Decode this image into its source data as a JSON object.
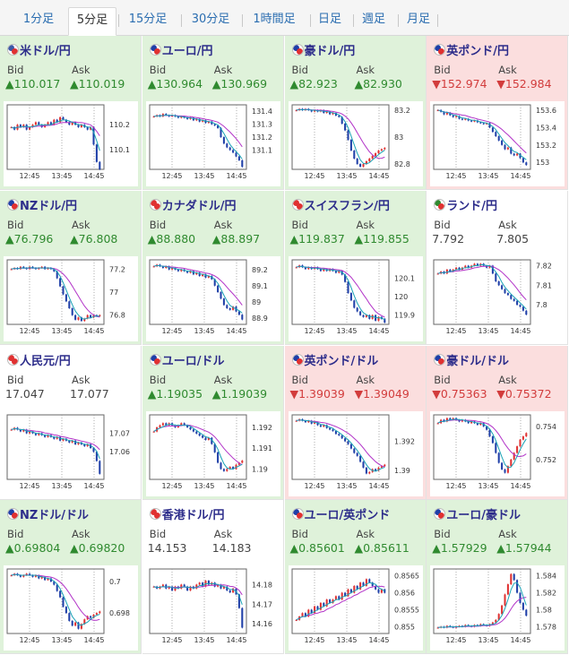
{
  "tabs": [
    "1分足",
    "5分足",
    "15分足",
    "30分足",
    "1時間足",
    "日足",
    "週足",
    "月足"
  ],
  "active_tab": "5分足",
  "labels": {
    "bid": "Bid",
    "ask": "Ask"
  },
  "colors": {
    "up_bg": "#dff2da",
    "down_bg": "#fbdede",
    "flat_bg": "#ffffff",
    "up_text": "#2f8a2f",
    "down_text": "#d23c3c",
    "candle_up": "#e03131",
    "candle_down": "#1f3fa8",
    "ma_long": "#b233c8",
    "ma_short": "#1aa3b6"
  },
  "pairs": [
    {
      "name": "米ドル/円",
      "trend": "up",
      "bid": "▲110.017",
      "ask": "▲110.019",
      "flag": [
        "#3c5aa6",
        "#e03131"
      ],
      "chart_data": {
        "type": "candlestick",
        "x_ticks": [
          "12:45",
          "13:45",
          "14:45"
        ],
        "y_ticks": [
          "110.2",
          "110.1"
        ],
        "ylim": [
          110.02,
          110.28
        ],
        "closes": [
          110.19,
          110.18,
          110.2,
          110.19,
          110.2,
          110.18,
          110.19,
          110.2,
          110.21,
          110.2,
          110.19,
          110.2,
          110.21,
          110.2,
          110.22,
          110.21,
          110.23,
          110.22,
          110.21,
          110.2,
          110.21,
          110.2,
          110.19,
          110.2,
          110.19,
          110.18,
          110.19,
          110.12,
          110.05,
          110.02
        ]
      }
    },
    {
      "name": "ユーロ/円",
      "trend": "up",
      "bid": "▲130.964",
      "ask": "▲130.969",
      "flag": [
        "#1f3fa8",
        "#e03131"
      ],
      "chart_data": {
        "type": "candlestick",
        "x_ticks": [
          "12:45",
          "13:45",
          "14:45"
        ],
        "y_ticks": [
          "131.4",
          "131.3",
          "131.2",
          "131.1"
        ],
        "ylim": [
          130.95,
          131.45
        ],
        "closes": [
          131.36,
          131.37,
          131.36,
          131.38,
          131.37,
          131.36,
          131.37,
          131.36,
          131.35,
          131.36,
          131.35,
          131.34,
          131.35,
          131.33,
          131.34,
          131.32,
          131.33,
          131.31,
          131.32,
          131.3,
          131.29,
          131.27,
          131.2,
          131.15,
          131.12,
          131.1,
          131.08,
          131.05,
          131.02,
          130.97
        ]
      }
    },
    {
      "name": "豪ドル/円",
      "trend": "up",
      "bid": "▲82.923",
      "ask": "▲82.930",
      "flag": [
        "#1f3fa8",
        "#e03131"
      ],
      "chart_data": {
        "type": "candlestick",
        "x_ticks": [
          "12:45",
          "13:45",
          "14:45"
        ],
        "y_ticks": [
          "83.2",
          "83",
          "82.8"
        ],
        "ylim": [
          82.76,
          83.24
        ],
        "closes": [
          83.2,
          83.21,
          83.2,
          83.21,
          83.2,
          83.19,
          83.2,
          83.19,
          83.2,
          83.18,
          83.19,
          83.17,
          83.18,
          83.16,
          83.15,
          83.1,
          83.05,
          82.98,
          82.9,
          82.84,
          82.8,
          82.78,
          82.8,
          82.82,
          82.84,
          82.86,
          82.88,
          82.9,
          82.91,
          82.92
        ]
      }
    },
    {
      "name": "英ポンド/円",
      "trend": "down",
      "bid": "▼152.974",
      "ask": "▼152.984",
      "flag": [
        "#1f3fa8",
        "#e03131"
      ],
      "chart_data": {
        "type": "candlestick",
        "x_ticks": [
          "12:45",
          "13:45",
          "14:45"
        ],
        "y_ticks": [
          "153.6",
          "153.4",
          "153.2",
          "153"
        ],
        "ylim": [
          152.92,
          153.66
        ],
        "closes": [
          153.6,
          153.58,
          153.55,
          153.57,
          153.54,
          153.52,
          153.53,
          153.5,
          153.49,
          153.5,
          153.48,
          153.47,
          153.48,
          153.46,
          153.45,
          153.44,
          153.45,
          153.4,
          153.35,
          153.3,
          153.25,
          153.2,
          153.15,
          153.17,
          153.1,
          153.08,
          153.1,
          153.05,
          153.0,
          152.97
        ]
      }
    },
    {
      "name": "NZドル/円",
      "trend": "up",
      "bid": "▲76.796",
      "ask": "▲76.808",
      "flag": [
        "#1f3fa8",
        "#e03131"
      ],
      "chart_data": {
        "type": "candlestick",
        "x_ticks": [
          "12:45",
          "13:45",
          "14:45"
        ],
        "y_ticks": [
          "77.2",
          "77",
          "76.8"
        ],
        "ylim": [
          76.72,
          77.28
        ],
        "closes": [
          77.2,
          77.21,
          77.2,
          77.22,
          77.21,
          77.2,
          77.22,
          77.21,
          77.2,
          77.21,
          77.22,
          77.2,
          77.21,
          77.2,
          77.18,
          77.12,
          77.05,
          76.98,
          76.92,
          76.86,
          76.8,
          76.76,
          76.78,
          76.75,
          76.77,
          76.8,
          76.78,
          76.8,
          76.79,
          76.8
        ]
      }
    },
    {
      "name": "カナダドル/円",
      "trend": "up",
      "bid": "▲88.880",
      "ask": "▲88.897",
      "flag": [
        "#e03131",
        "#e03131"
      ],
      "chart_data": {
        "type": "candlestick",
        "x_ticks": [
          "12:45",
          "13:45",
          "14:45"
        ],
        "y_ticks": [
          "89.2",
          "89.1",
          "89",
          "88.9"
        ],
        "ylim": [
          88.86,
          89.26
        ],
        "closes": [
          89.22,
          89.23,
          89.22,
          89.21,
          89.22,
          89.2,
          89.21,
          89.2,
          89.19,
          89.2,
          89.19,
          89.18,
          89.19,
          89.17,
          89.18,
          89.16,
          89.17,
          89.15,
          89.16,
          89.14,
          89.1,
          89.06,
          89.02,
          88.98,
          88.96,
          88.95,
          88.97,
          88.94,
          88.92,
          88.89
        ]
      }
    },
    {
      "name": "スイスフラン/円",
      "trend": "up",
      "bid": "▲119.837",
      "ask": "▲119.855",
      "flag": [
        "#e03131",
        "#e03131"
      ],
      "chart_data": {
        "type": "candlestick",
        "x_ticks": [
          "12:45",
          "13:45",
          "14:45"
        ],
        "y_ticks": [
          "120.1",
          "120",
          "119.9"
        ],
        "ylim": [
          119.85,
          120.2
        ],
        "closes": [
          120.16,
          120.17,
          120.16,
          120.15,
          120.16,
          120.15,
          120.16,
          120.15,
          120.14,
          120.15,
          120.14,
          120.15,
          120.14,
          120.13,
          120.14,
          120.12,
          120.08,
          120.02,
          119.98,
          119.94,
          119.92,
          119.9,
          119.89,
          119.9,
          119.88,
          119.9,
          119.87,
          119.89,
          119.88,
          119.86
        ]
      }
    },
    {
      "name": "ランド/円",
      "trend": "flat",
      "bid": "7.792",
      "ask": "7.805",
      "flag": [
        "#2f8a2f",
        "#e03131"
      ],
      "chart_data": {
        "type": "candlestick",
        "x_ticks": [
          "12:45",
          "13:45",
          "14:45"
        ],
        "y_ticks": [
          "7.82",
          "7.81",
          "7.8"
        ],
        "ylim": [
          7.79,
          7.823
        ],
        "closes": [
          7.816,
          7.817,
          7.816,
          7.818,
          7.817,
          7.818,
          7.819,
          7.818,
          7.819,
          7.82,
          7.819,
          7.82,
          7.821,
          7.82,
          7.821,
          7.82,
          7.819,
          7.82,
          7.816,
          7.812,
          7.81,
          7.808,
          7.806,
          7.805,
          7.803,
          7.802,
          7.8,
          7.799,
          7.797,
          7.795
        ]
      }
    },
    {
      "name": "人民元/円",
      "trend": "flat",
      "bid": "17.047",
      "ask": "17.077",
      "flag": [
        "#e03131",
        "#e03131"
      ],
      "chart_data": {
        "type": "candlestick",
        "x_ticks": [
          "12:45",
          "13:45",
          "14:45"
        ],
        "y_ticks": [
          "17.07",
          "17.06"
        ],
        "ylim": [
          17.045,
          17.08
        ],
        "closes": [
          17.072,
          17.073,
          17.072,
          17.071,
          17.072,
          17.07,
          17.071,
          17.07,
          17.069,
          17.07,
          17.069,
          17.068,
          17.069,
          17.068,
          17.067,
          17.068,
          17.066,
          17.067,
          17.066,
          17.065,
          17.066,
          17.064,
          17.065,
          17.064,
          17.063,
          17.064,
          17.062,
          17.06,
          17.055,
          17.048
        ]
      }
    },
    {
      "name": "ユーロ/ドル",
      "trend": "up",
      "bid": "▲1.19035",
      "ask": "▲1.19039",
      "flag": [
        "#1f3fa8",
        "#e03131"
      ],
      "chart_data": {
        "type": "candlestick",
        "x_ticks": [
          "12:45",
          "13:45",
          "14:45"
        ],
        "y_ticks": [
          "1.192",
          "1.191",
          "1.19"
        ],
        "ylim": [
          1.1895,
          1.1926
        ],
        "closes": [
          1.1918,
          1.192,
          1.1921,
          1.1922,
          1.1921,
          1.1922,
          1.1921,
          1.192,
          1.1921,
          1.1922,
          1.1921,
          1.192,
          1.1919,
          1.1918,
          1.1917,
          1.1916,
          1.1915,
          1.1914,
          1.1915,
          1.1912,
          1.1908,
          1.1903,
          1.19,
          1.1899,
          1.19,
          1.1901,
          1.19,
          1.1902,
          1.1903,
          1.1904
        ]
      }
    },
    {
      "name": "英ポンド/ドル",
      "trend": "down",
      "bid": "▼1.39039",
      "ask": "▼1.39049",
      "flag": [
        "#1f3fa8",
        "#e03131"
      ],
      "chart_data": {
        "type": "candlestick",
        "x_ticks": [
          "12:45",
          "13:45",
          "14:45"
        ],
        "y_ticks": [
          "1.392",
          "1.39"
        ],
        "ylim": [
          1.3894,
          1.3938
        ],
        "closes": [
          1.3934,
          1.3935,
          1.3934,
          1.3933,
          1.3934,
          1.3932,
          1.3933,
          1.3931,
          1.393,
          1.3931,
          1.3929,
          1.3928,
          1.3927,
          1.3925,
          1.3924,
          1.3922,
          1.392,
          1.3918,
          1.3915,
          1.3912,
          1.391,
          1.3906,
          1.3902,
          1.3898,
          1.3899,
          1.3901,
          1.39,
          1.3902,
          1.3903,
          1.3904
        ]
      }
    },
    {
      "name": "豪ドル/ドル",
      "trend": "down",
      "bid": "▼0.75363",
      "ask": "▼0.75372",
      "flag": [
        "#1f3fa8",
        "#e03131"
      ],
      "chart_data": {
        "type": "candlestick",
        "x_ticks": [
          "12:45",
          "13:45",
          "14:45"
        ],
        "y_ticks": [
          "0.754",
          "0.752"
        ],
        "ylim": [
          0.7508,
          0.7547
        ],
        "closes": [
          0.7542,
          0.7544,
          0.7543,
          0.7545,
          0.7544,
          0.7545,
          0.7544,
          0.7543,
          0.7544,
          0.7543,
          0.7542,
          0.7543,
          0.7542,
          0.7541,
          0.7542,
          0.754,
          0.7538,
          0.7534,
          0.753,
          0.7524,
          0.7518,
          0.7514,
          0.7512,
          0.7516,
          0.752,
          0.7524,
          0.7528,
          0.7532,
          0.7534,
          0.7536
        ]
      }
    },
    {
      "name": "NZドル/ドル",
      "trend": "up",
      "bid": "▲0.69804",
      "ask": "▲0.69820",
      "flag": [
        "#1f3fa8",
        "#e03131"
      ],
      "chart_data": {
        "type": "candlestick",
        "x_ticks": [
          "12:45",
          "13:45",
          "14:45"
        ],
        "y_ticks": [
          "0.7",
          "0.698"
        ],
        "ylim": [
          0.6967,
          0.7008
        ],
        "closes": [
          0.7004,
          0.7005,
          0.7004,
          0.7003,
          0.7004,
          0.7005,
          0.7004,
          0.7003,
          0.7004,
          0.7002,
          0.7003,
          0.7001,
          0.7002,
          0.7,
          0.6998,
          0.6994,
          0.699,
          0.6984,
          0.698,
          0.6975,
          0.6972,
          0.6974,
          0.697,
          0.6973,
          0.6976,
          0.6978,
          0.6977,
          0.6979,
          0.698,
          0.6981
        ]
      }
    },
    {
      "name": "香港ドル/円",
      "trend": "flat",
      "bid": "14.153",
      "ask": "14.183",
      "flag": [
        "#e03131",
        "#e03131"
      ],
      "chart_data": {
        "type": "candlestick",
        "x_ticks": [
          "12:45",
          "13:45",
          "14:45"
        ],
        "y_ticks": [
          "14.18",
          "14.17",
          "14.16"
        ],
        "ylim": [
          14.155,
          14.188
        ],
        "closes": [
          14.179,
          14.178,
          14.179,
          14.18,
          14.178,
          14.179,
          14.177,
          14.179,
          14.178,
          14.18,
          14.179,
          14.177,
          14.179,
          14.178,
          14.18,
          14.181,
          14.179,
          14.182,
          14.18,
          14.181,
          14.179,
          14.18,
          14.178,
          14.179,
          14.177,
          14.176,
          14.178,
          14.175,
          14.168,
          14.158
        ]
      }
    },
    {
      "name": "ユーロ/英ポンド",
      "trend": "up",
      "bid": "▲0.85601",
      "ask": "▲0.85611",
      "flag": [
        "#1f3fa8",
        "#e03131"
      ],
      "chart_data": {
        "type": "candlestick",
        "x_ticks": [
          "12:45",
          "13:45",
          "14:45"
        ],
        "y_ticks": [
          "0.8565",
          "0.856",
          "0.8555",
          "0.855"
        ],
        "ylim": [
          0.8548,
          0.8567
        ],
        "closes": [
          0.8552,
          0.8553,
          0.8554,
          0.8553,
          0.8555,
          0.8554,
          0.8556,
          0.8555,
          0.8557,
          0.8556,
          0.8558,
          0.8557,
          0.8558,
          0.8559,
          0.8558,
          0.856,
          0.8559,
          0.8561,
          0.856,
          0.8562,
          0.8561,
          0.8563,
          0.8562,
          0.8564,
          0.8563,
          0.8562,
          0.8561,
          0.856,
          0.8561,
          0.856
        ]
      }
    },
    {
      "name": "ユーロ/豪ドル",
      "trend": "up",
      "bid": "▲1.57929",
      "ask": "▲1.57944",
      "flag": [
        "#1f3fa8",
        "#e03131"
      ],
      "chart_data": {
        "type": "candlestick",
        "x_ticks": [
          "12:45",
          "13:45",
          "14:45"
        ],
        "y_ticks": [
          "1.584",
          "1.582",
          "1.58",
          "1.578"
        ],
        "ylim": [
          1.5772,
          1.5848
        ],
        "closes": [
          1.5779,
          1.578,
          1.5779,
          1.5781,
          1.578,
          1.5779,
          1.578,
          1.5781,
          1.578,
          1.5782,
          1.5781,
          1.578,
          1.5782,
          1.5781,
          1.5783,
          1.5782,
          1.5781,
          1.5783,
          1.5785,
          1.5788,
          1.5795,
          1.5805,
          1.5818,
          1.583,
          1.5842,
          1.5835,
          1.582,
          1.5808,
          1.58,
          1.5793
        ]
      }
    }
  ]
}
